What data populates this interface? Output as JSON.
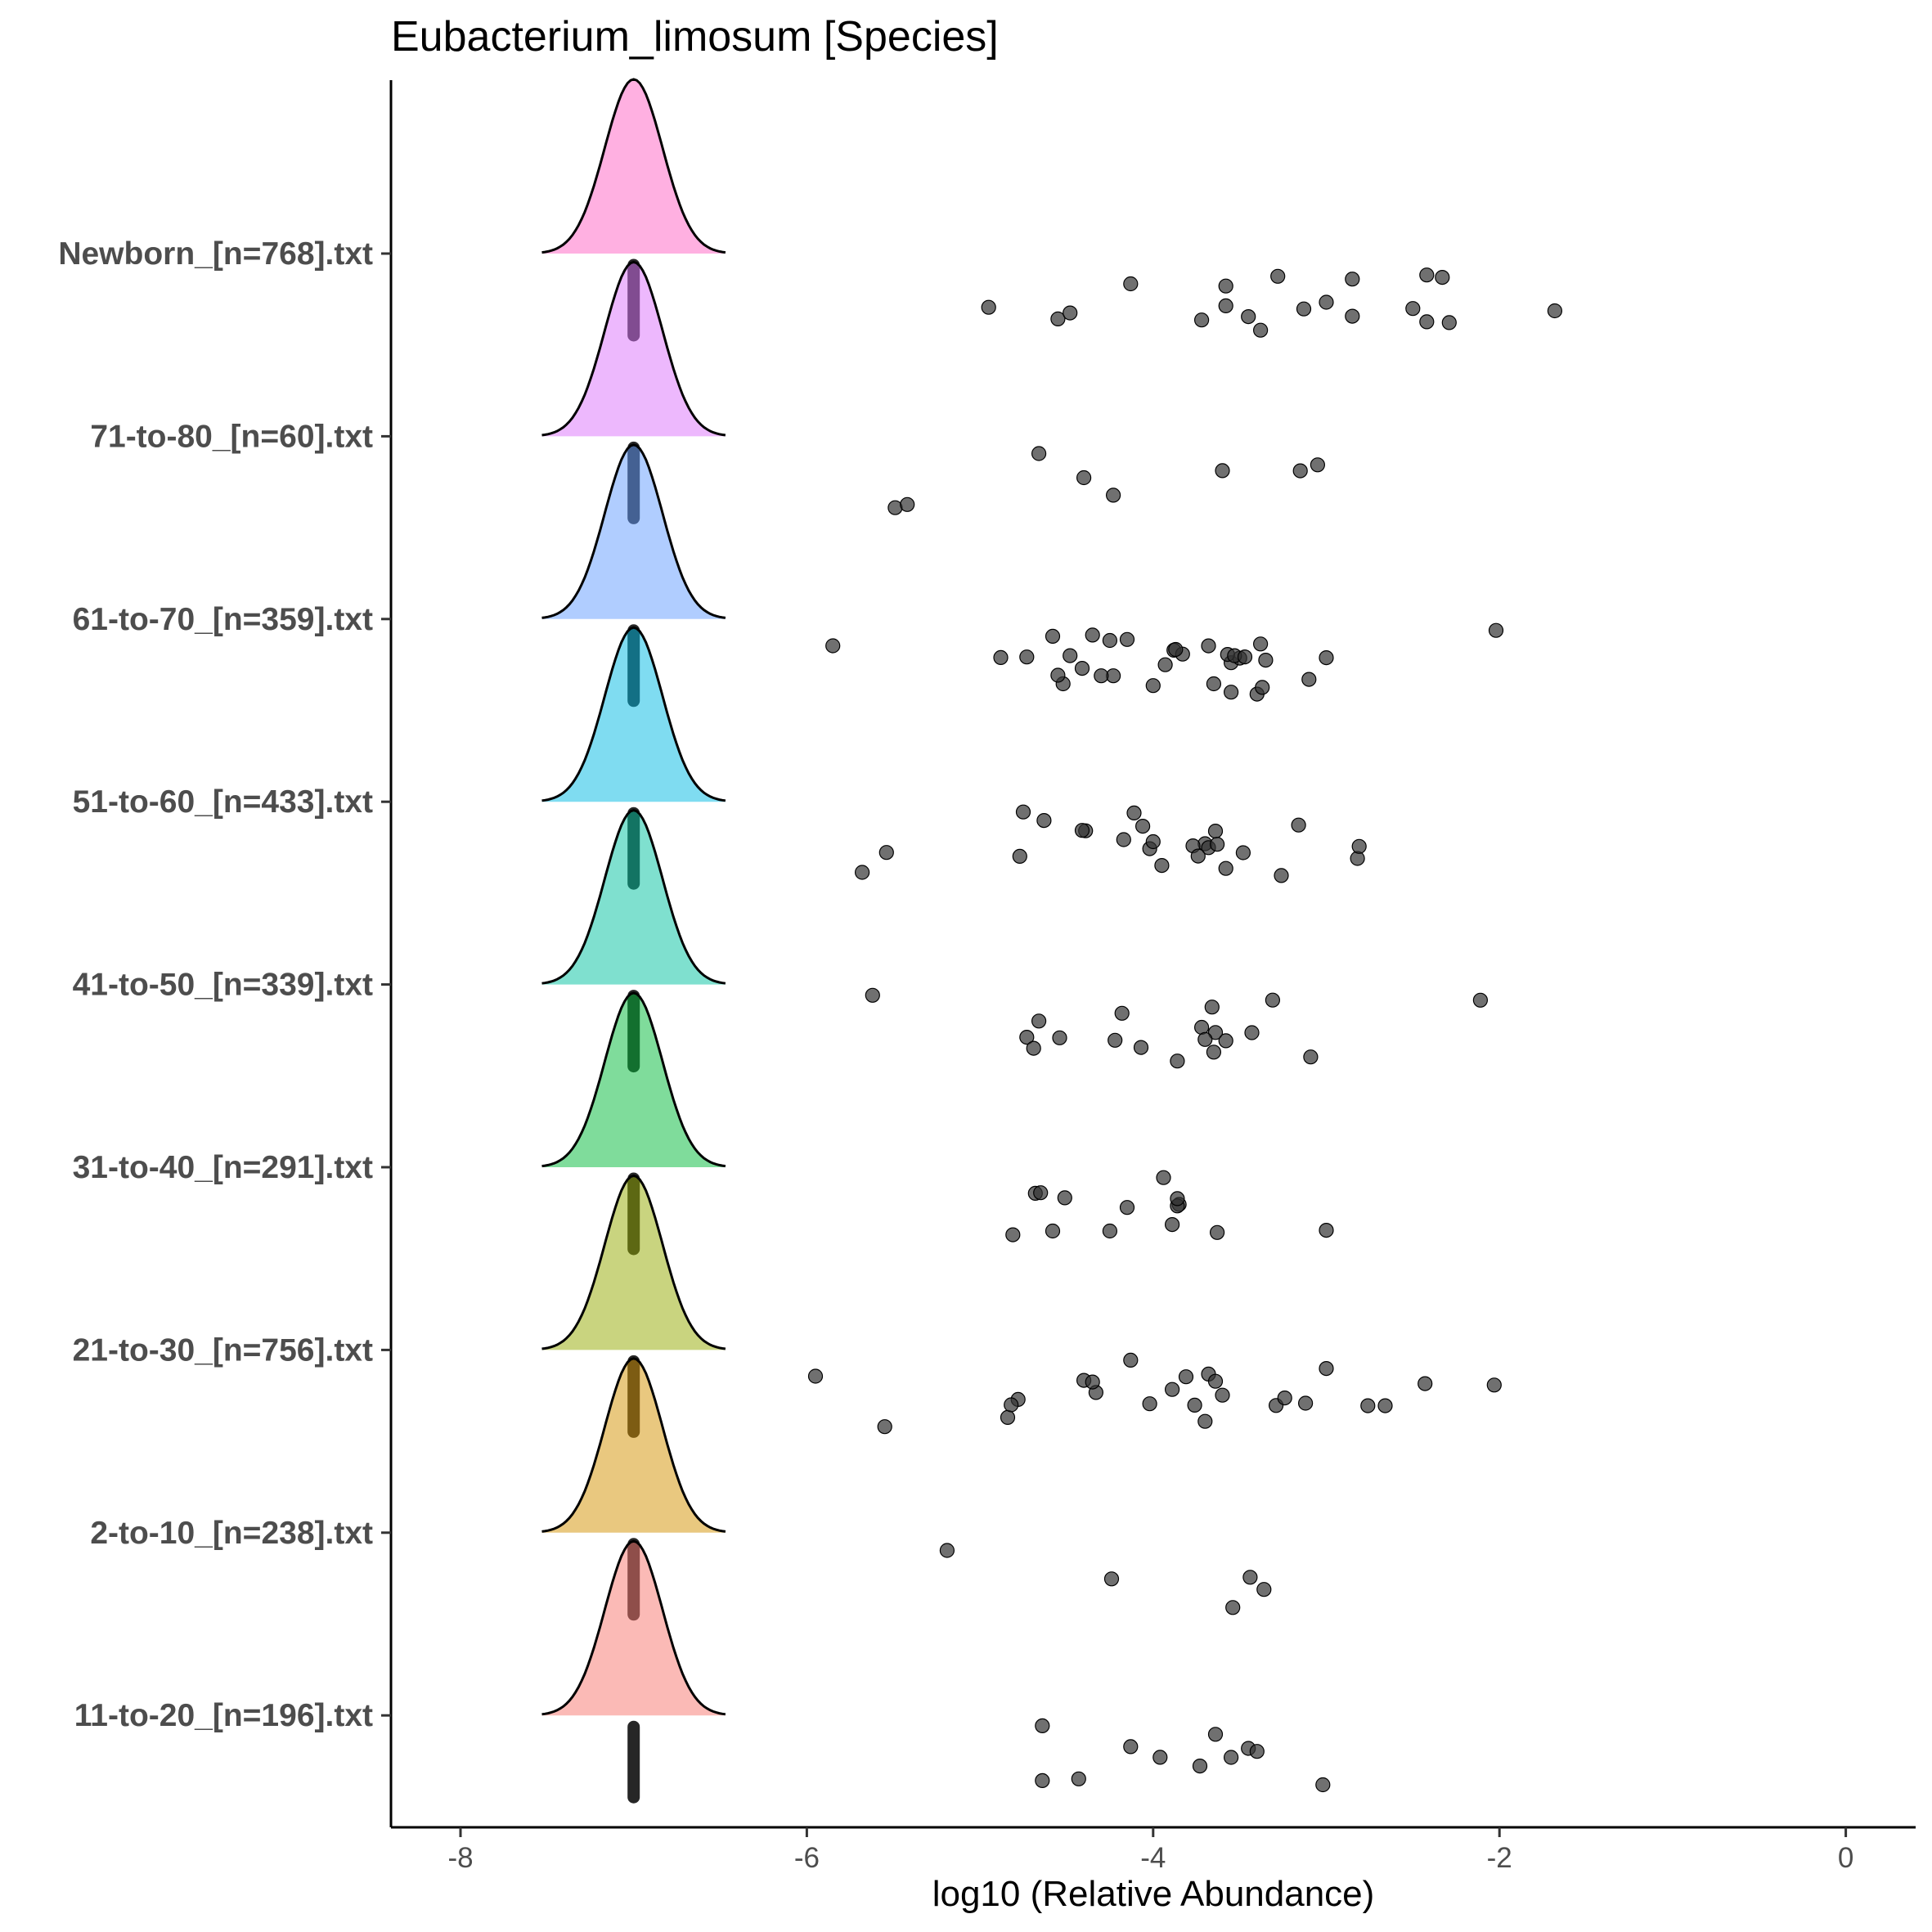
{
  "chart_data": {
    "type": "ridgeline",
    "title": "Eubacterium_limosum [Species]",
    "xlabel": "log10 (Relative Abundance)",
    "ylabel": "",
    "xlim": [
      -8.4,
      0.4
    ],
    "xticks": [
      -8,
      -6,
      -4,
      -2,
      0
    ],
    "grid": false,
    "legend": "none",
    "point_color": "#333333",
    "baseline_value": -7,
    "groups": [
      {
        "label": "Newborn_[n=768].txt",
        "color": "#FF61C3",
        "points": [
          -4.95,
          -4.13,
          -3.58,
          -3.38,
          -3.13,
          -2.5,
          -2.42,
          -2.29,
          -1.68,
          -4.55,
          -4.48,
          -3.58,
          -3.45,
          -3.28,
          -3.0,
          -2.85,
          -2.33,
          -2.85,
          -2.42,
          -3.72
        ]
      },
      {
        "label": "71-to-80_[n=60].txt",
        "color": "#DB72FB",
        "points": [
          -4.66,
          -4.4,
          -4.23,
          -3.6,
          -3.05,
          -3.15,
          -5.49,
          -5.42
        ]
      },
      {
        "label": "61-to-70_[n=359].txt",
        "color": "#619CFF",
        "points": [
          -4.73,
          -4.88,
          -4.52,
          -4.25,
          -4.15,
          -3.88,
          -3.83,
          -3.55,
          -3.4,
          -3.35,
          -3.1,
          -3.38,
          -3.5,
          -3.37,
          -3.65,
          -3.87,
          -3.93,
          -4.0,
          -4.23,
          -4.58,
          -4.41,
          -4.35,
          -4.55,
          -4.48,
          -4.3,
          -3.68,
          -3.57,
          -3.53,
          -3.47,
          -3.55,
          -3.0,
          -2.02,
          -5.85
        ]
      },
      {
        "label": "51-to-60_[n=433].txt",
        "color": "#00B9E3",
        "points": [
          -4.63,
          -4.77,
          -4.75,
          -4.39,
          -4.41,
          -4.17,
          -4.06,
          -3.95,
          -3.7,
          -3.68,
          -3.58,
          -3.48,
          -2.82,
          -4.11,
          -4.02,
          -4.0,
          -3.77,
          -3.74,
          -3.64,
          -3.63,
          -3.26,
          -3.16,
          -2.81,
          -5.68,
          -5.54
        ]
      },
      {
        "label": "41-to-50_[n=339].txt",
        "color": "#00C19F",
        "points": [
          -5.62,
          -4.73,
          -4.54,
          -4.66,
          -4.69,
          -4.22,
          -4.18,
          -4.07,
          -3.86,
          -3.72,
          -3.66,
          -3.64,
          -3.7,
          -3.65,
          -3.43,
          -3.58,
          -3.31,
          -3.09,
          -2.11
        ]
      },
      {
        "label": "31-to-40_[n=291].txt",
        "color": "#00BA38",
        "points": [
          -4.68,
          -4.15,
          -4.25,
          -4.51,
          -4.81,
          -4.65,
          -4.58,
          -3.85,
          -3.86,
          -3.94,
          -3.86,
          -3.89,
          -3.63,
          -3.0
        ]
      },
      {
        "label": "21-to-30_[n=756].txt",
        "color": "#93AA00",
        "points": [
          -5.55,
          -4.78,
          -4.84,
          -4.4,
          -4.13,
          -3.81,
          -3.6,
          -3.12,
          -2.66,
          -4.82,
          -4.33,
          -4.02,
          -3.7,
          -3.29,
          -3.0,
          -3.24,
          -3.68,
          -3.76,
          -3.89,
          -3.64,
          -2.76,
          -2.43,
          -2.03,
          -5.95,
          -4.35
        ]
      },
      {
        "label": "2-to-10_[n=238].txt",
        "color": "#D39200",
        "points": [
          -5.19,
          -4.24,
          -3.54,
          -3.36,
          -3.44
        ]
      },
      {
        "label": "11-to-20_[n=196].txt",
        "color": "#F8766D",
        "points": [
          -4.64,
          -4.43,
          -4.13,
          -3.96,
          -3.55,
          -3.64,
          -3.02,
          -3.45,
          -4.64,
          -3.73,
          -3.4
        ]
      }
    ]
  }
}
